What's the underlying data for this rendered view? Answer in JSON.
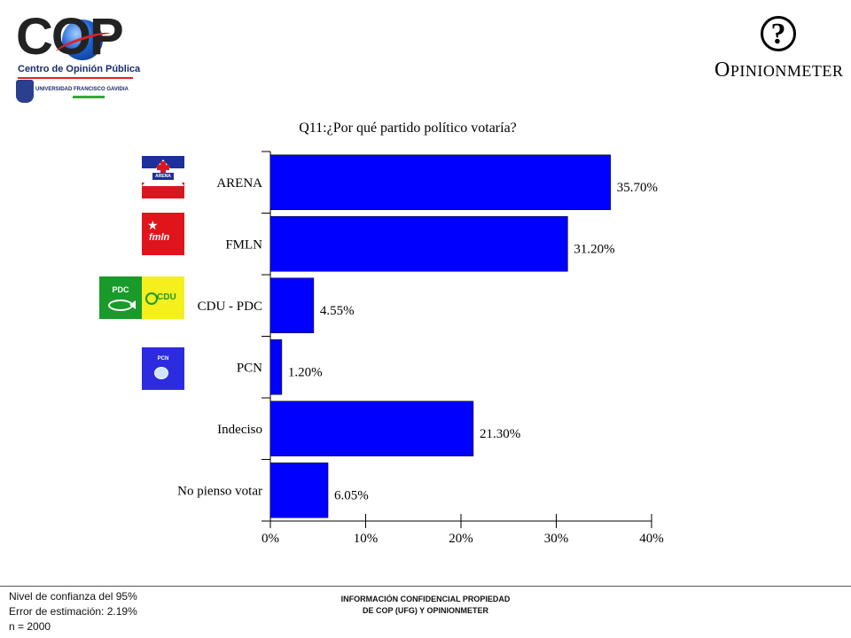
{
  "header": {
    "cop_logo": {
      "letters": "COP",
      "subtitle": "Centro de Opinión Pública",
      "university": "UNIVERSIDAD FRANCISCO GAVIDIA",
      "crest_text": "UFG"
    },
    "opinionmeter_logo": {
      "symbol": "?",
      "wordmark_initial": "O",
      "wordmark_rest": "PINIONMETER"
    }
  },
  "chart_data": {
    "type": "bar",
    "orientation": "horizontal",
    "title": "Q11:¿Por qué partido político votaría?",
    "categories": [
      "ARENA",
      "FMLN",
      "CDU - PDC",
      "PCN",
      "Indeciso",
      "No pienso votar"
    ],
    "values": [
      35.7,
      31.2,
      4.55,
      1.2,
      21.3,
      6.05
    ],
    "value_labels": [
      "35.70%",
      "31.20%",
      "4.55%",
      "1.20%",
      "21.30%",
      "6.05%"
    ],
    "xlim": [
      0,
      40
    ],
    "x_ticks": [
      0,
      10,
      20,
      30,
      40
    ],
    "x_tick_labels": [
      "0%",
      "10%",
      "20%",
      "30%",
      "40%"
    ],
    "xlabel": "",
    "ylabel": "",
    "bar_color": "#0000ff",
    "grid": false,
    "legend": "none"
  },
  "party_logos": {
    "arena": {
      "text": "ARENA",
      "colors": [
        "#1c2f9c",
        "#ffffff",
        "#d7191f"
      ]
    },
    "fmln": {
      "text": "fmln",
      "color": "#e0141b"
    },
    "pdc": {
      "text": "PDC",
      "color": "#1a9a2a"
    },
    "cdu": {
      "text": "CDU",
      "color": "#f5ef1d"
    },
    "pcn": {
      "text": "PCN",
      "color": "#2d2be0"
    }
  },
  "footer": {
    "stats": [
      "Nivel de confianza del 95%",
      "Error de estimación: 2.19%",
      "n = 2000"
    ],
    "confidential": [
      "INFORMACIÓN CONFIDENCIAL PROPIEDAD",
      "DE COP (UFG) Y OPINIONMETER"
    ]
  }
}
